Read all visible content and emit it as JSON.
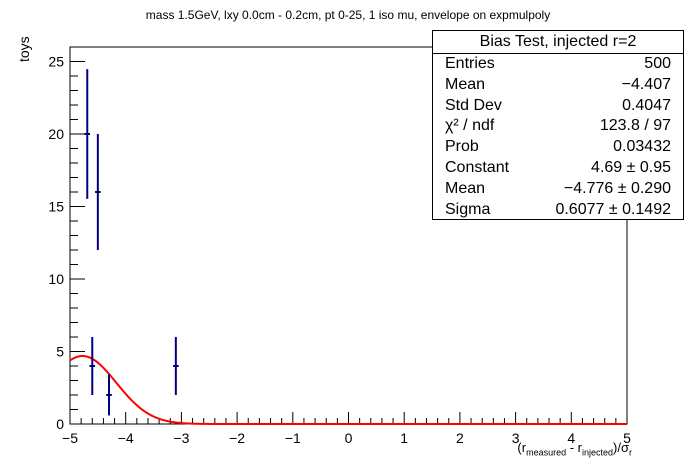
{
  "chart_data": {
    "type": "scatter",
    "title": "mass 1.5GeV, lxy 0.0cm - 0.2cm, pt 0-25, 1 iso mu, envelope on expmulpoly",
    "ylabel": "toys",
    "xlabel_parts": [
      "(r",
      "measured",
      " - r",
      "injected",
      ")/σ",
      "r"
    ],
    "xlim": [
      -5,
      5
    ],
    "ylim": [
      0,
      26
    ],
    "xticks": [
      "−5",
      "−4",
      "−3",
      "−2",
      "−1",
      "0",
      "1",
      "2",
      "3",
      "4",
      "5"
    ],
    "yticks": [
      "0",
      "5",
      "10",
      "15",
      "20",
      "25"
    ],
    "points": [
      {
        "x": -4.69,
        "y": 20,
        "xerr": 0.05,
        "yerr": 4.47
      },
      {
        "x": -4.5,
        "y": 16,
        "xerr": 0.05,
        "yerr": 4.0
      },
      {
        "x": -4.6,
        "y": 4,
        "xerr": 0.05,
        "yerr": 2.0
      },
      {
        "x": -4.3,
        "y": 2,
        "xerr": 0.05,
        "yerr": 1.41
      },
      {
        "x": -3.1,
        "y": 4,
        "xerr": 0.05,
        "yerr": 2.0
      }
    ],
    "fit": {
      "type": "gaus",
      "constant": 4.69,
      "mean": -4.776,
      "sigma": 0.6077,
      "color": "#ff0000"
    },
    "marker_color": "#000080",
    "stats": {
      "header": "Bias Test, injected r=2",
      "rows": [
        {
          "label": "Entries",
          "value": "500"
        },
        {
          "label": "Mean",
          "value": "−4.407"
        },
        {
          "label": "Std Dev",
          "value": "0.4047"
        },
        {
          "label": "χ² / ndf",
          "value": "123.8 / 97"
        },
        {
          "label": "Prob",
          "value": "0.03432"
        },
        {
          "label": "Constant",
          "value": "4.69 ± 0.95"
        },
        {
          "label": "Mean",
          "value": "−4.776 ± 0.290"
        },
        {
          "label": "Sigma",
          "value": "0.6077 ± 0.1492"
        }
      ]
    }
  }
}
